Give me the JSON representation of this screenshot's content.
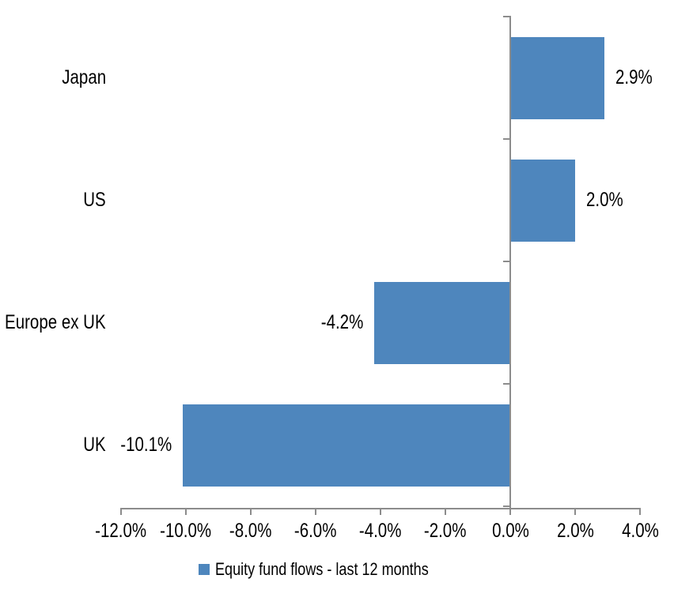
{
  "chart_data": {
    "type": "bar",
    "orientation": "horizontal",
    "title": "",
    "xlabel": "",
    "ylabel": "",
    "categories": [
      "Japan",
      "US",
      "Europe ex UK",
      "UK"
    ],
    "series": [
      {
        "name": "Equity fund flows - last 12 months",
        "values": [
          2.9,
          2.0,
          -4.2,
          -10.1
        ],
        "data_labels": [
          "2.9%",
          "2.0%",
          "-4.2%",
          "-10.1%"
        ]
      }
    ],
    "xlim": [
      -12,
      4
    ],
    "x_tick_step": 2,
    "x_tick_labels": [
      "-12.0%",
      "-10.0%",
      "-8.0%",
      "-6.0%",
      "-4.0%",
      "-2.0%",
      "0.0%",
      "2.0%",
      "4.0%"
    ],
    "grid": false,
    "legend_position": "bottom",
    "data_label_position": "outside-end",
    "colors": {
      "bar": "#4E86BD",
      "axis": "#8C8C8C",
      "text": "#000000",
      "background": "#ffffff"
    }
  },
  "legend": {
    "label": "Equity fund flows - last 12 months"
  }
}
